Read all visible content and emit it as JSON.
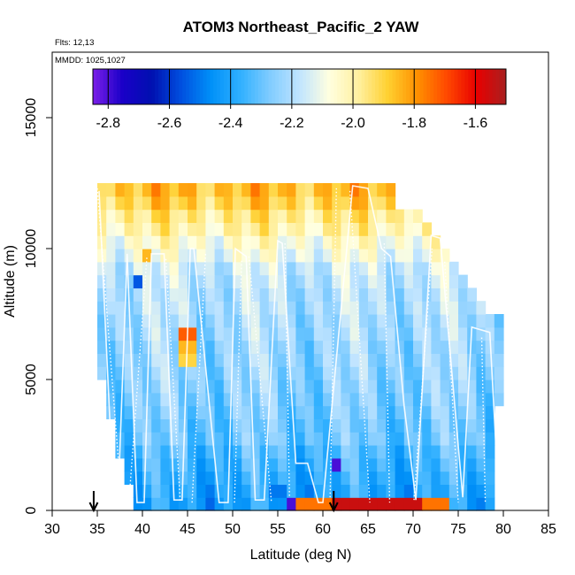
{
  "chart_data": {
    "type": "heatmap",
    "title": "ATOM3 Northeast_Pacific_2 YAW",
    "flights_label": "Flts: 12,13",
    "mmdd_label": "MMDD: 1025,1027",
    "xlabel": "Latitude (deg N)",
    "ylabel": "Altitude (m)",
    "xlim": [
      30,
      85
    ],
    "ylim": [
      0,
      17500
    ],
    "x_ticks": [
      30,
      35,
      40,
      45,
      50,
      55,
      60,
      65,
      70,
      75,
      80,
      85
    ],
    "y_ticks": [
      0,
      5000,
      10000,
      15000
    ],
    "colorbar": {
      "range": [
        -2.85,
        -1.5
      ],
      "ticks": [
        -2.8,
        -2.6,
        -2.4,
        -2.2,
        -2.0,
        -1.8,
        -1.6
      ],
      "tick_labels": [
        "-2.8",
        "-2.6",
        "-2.4",
        "-2.2",
        "-2.0",
        "-1.8",
        "-1.6"
      ],
      "colors": [
        "#7b1fe8",
        "#1a00c8",
        "#0010b0",
        "#0050e0",
        "#0090f8",
        "#30b0ff",
        "#80ccff",
        "#c0e4ff",
        "#ffffe0",
        "#fff0a0",
        "#ffd030",
        "#ff9000",
        "#ff4800",
        "#e80000",
        "#a82020"
      ]
    },
    "arrows_latitude": [
      34.6,
      61.2
    ],
    "altitude_bin_m": 500,
    "latitude_bin_deg": 1,
    "curtain": [
      {
        "alt": 250,
        "lat": [
          39,
          79
        ],
        "base": -2.42,
        "patches": [
          [
            56,
            57,
            -2.8
          ],
          [
            57,
            61,
            -1.75
          ],
          [
            61,
            71,
            -1.55
          ],
          [
            71,
            74,
            -1.75
          ]
        ]
      },
      {
        "alt": 750,
        "lat": [
          39,
          79
        ],
        "base": -2.4,
        "patches": [
          [
            54,
            56,
            -2.5
          ]
        ]
      },
      {
        "alt": 1250,
        "lat": [
          38,
          79
        ],
        "base": -2.38
      },
      {
        "alt": 1750,
        "lat": [
          38,
          79
        ],
        "base": -2.36,
        "patches": [
          [
            61,
            62,
            -2.8
          ]
        ]
      },
      {
        "alt": 2250,
        "lat": [
          37,
          79
        ],
        "base": -2.34
      },
      {
        "alt": 2750,
        "lat": [
          37,
          79
        ],
        "base": -2.3
      },
      {
        "alt": 3250,
        "lat": [
          37,
          79
        ],
        "base": -2.3
      },
      {
        "alt": 3750,
        "lat": [
          36,
          79
        ],
        "base": -2.28
      },
      {
        "alt": 4250,
        "lat": [
          36,
          80
        ],
        "base": -2.27
      },
      {
        "alt": 4750,
        "lat": [
          36,
          80
        ],
        "base": -2.26
      },
      {
        "alt": 5250,
        "lat": [
          35,
          80
        ],
        "base": -2.25
      },
      {
        "alt": 5750,
        "lat": [
          35,
          80
        ],
        "base": -2.24,
        "patches": [
          [
            44,
            46,
            -1.9
          ]
        ]
      },
      {
        "alt": 6250,
        "lat": [
          35,
          80
        ],
        "base": -2.24,
        "patches": [
          [
            44,
            46,
            -1.85
          ]
        ]
      },
      {
        "alt": 6750,
        "lat": [
          35,
          80
        ],
        "base": -2.22,
        "patches": [
          [
            44,
            46,
            -1.72
          ]
        ]
      },
      {
        "alt": 7250,
        "lat": [
          35,
          80
        ],
        "base": -2.22
      },
      {
        "alt": 7750,
        "lat": [
          35,
          78
        ],
        "base": -2.2
      },
      {
        "alt": 8250,
        "lat": [
          35,
          77
        ],
        "base": -2.2
      },
      {
        "alt": 8750,
        "lat": [
          35,
          76
        ],
        "base": -2.18,
        "patches": [
          [
            39,
            40,
            -2.55
          ]
        ]
      },
      {
        "alt": 9250,
        "lat": [
          35,
          75
        ],
        "base": -2.16
      },
      {
        "alt": 9750,
        "lat": [
          35,
          74
        ],
        "base": -2.1,
        "patches": [
          [
            40,
            41,
            -1.85
          ]
        ]
      },
      {
        "alt": 10250,
        "lat": [
          35,
          73
        ],
        "base": -2.06
      },
      {
        "alt": 10750,
        "lat": [
          35,
          72
        ],
        "base": -2.0
      },
      {
        "alt": 11250,
        "lat": [
          35,
          71
        ],
        "base": -1.96
      },
      {
        "alt": 11750,
        "lat": [
          35,
          68
        ],
        "base": -1.9
      },
      {
        "alt": 12250,
        "lat": [
          35,
          68
        ],
        "base": -1.86
      }
    ],
    "flight_track": [
      [
        35.2,
        12200
      ],
      [
        36.8,
        400
      ],
      [
        37.3,
        400
      ],
      [
        38.3,
        9800
      ],
      [
        39.4,
        300
      ],
      [
        40.2,
        300
      ],
      [
        41.0,
        9800
      ],
      [
        42.4,
        9800
      ],
      [
        43.5,
        400
      ],
      [
        44.4,
        400
      ],
      [
        45.3,
        10000
      ],
      [
        45.7,
        10000
      ],
      [
        48.5,
        300
      ],
      [
        49.5,
        300
      ],
      [
        50.3,
        10000
      ],
      [
        51.5,
        9700
      ],
      [
        52.5,
        400
      ],
      [
        53.5,
        400
      ],
      [
        55.0,
        10300
      ],
      [
        55.5,
        10200
      ],
      [
        57.0,
        1800
      ],
      [
        58.3,
        1800
      ],
      [
        59.5,
        300
      ],
      [
        60.0,
        300
      ],
      [
        63.3,
        12400
      ],
      [
        65.0,
        12300
      ],
      [
        66.5,
        10000
      ],
      [
        67.5,
        9700
      ],
      [
        69.0,
        4000
      ],
      [
        70.3,
        400
      ],
      [
        72.0,
        10500
      ],
      [
        73.0,
        10400
      ],
      [
        75.5,
        500
      ],
      [
        76.5,
        7000
      ],
      [
        78.5,
        6800
      ],
      [
        79.5,
        400
      ]
    ],
    "profile_lines": [
      [
        [
          35.0,
          12300
        ],
        [
          37.7,
          300
        ]
      ],
      [
        [
          38.5,
          300
        ],
        [
          40.5,
          9700
        ]
      ],
      [
        [
          42.6,
          9600
        ],
        [
          44.2,
          300
        ]
      ],
      [
        [
          45.5,
          300
        ],
        [
          47.0,
          9800
        ]
      ],
      [
        [
          50.2,
          300
        ],
        [
          51.0,
          9600
        ]
      ],
      [
        [
          51.8,
          9700
        ],
        [
          54.3,
          300
        ]
      ],
      [
        [
          55.8,
          10200
        ],
        [
          56.3,
          500
        ]
      ],
      [
        [
          60.8,
          500
        ],
        [
          61.5,
          12300
        ]
      ],
      [
        [
          63.0,
          12200
        ],
        [
          65.2,
          300
        ]
      ],
      [
        [
          66.8,
          10200
        ],
        [
          67.4,
          300
        ]
      ],
      [
        [
          70.1,
          400
        ],
        [
          72.1,
          10000
        ]
      ],
      [
        [
          73.5,
          9500
        ],
        [
          75.0,
          300
        ]
      ],
      [
        [
          77.6,
          6600
        ],
        [
          78.0,
          300
        ]
      ]
    ]
  }
}
